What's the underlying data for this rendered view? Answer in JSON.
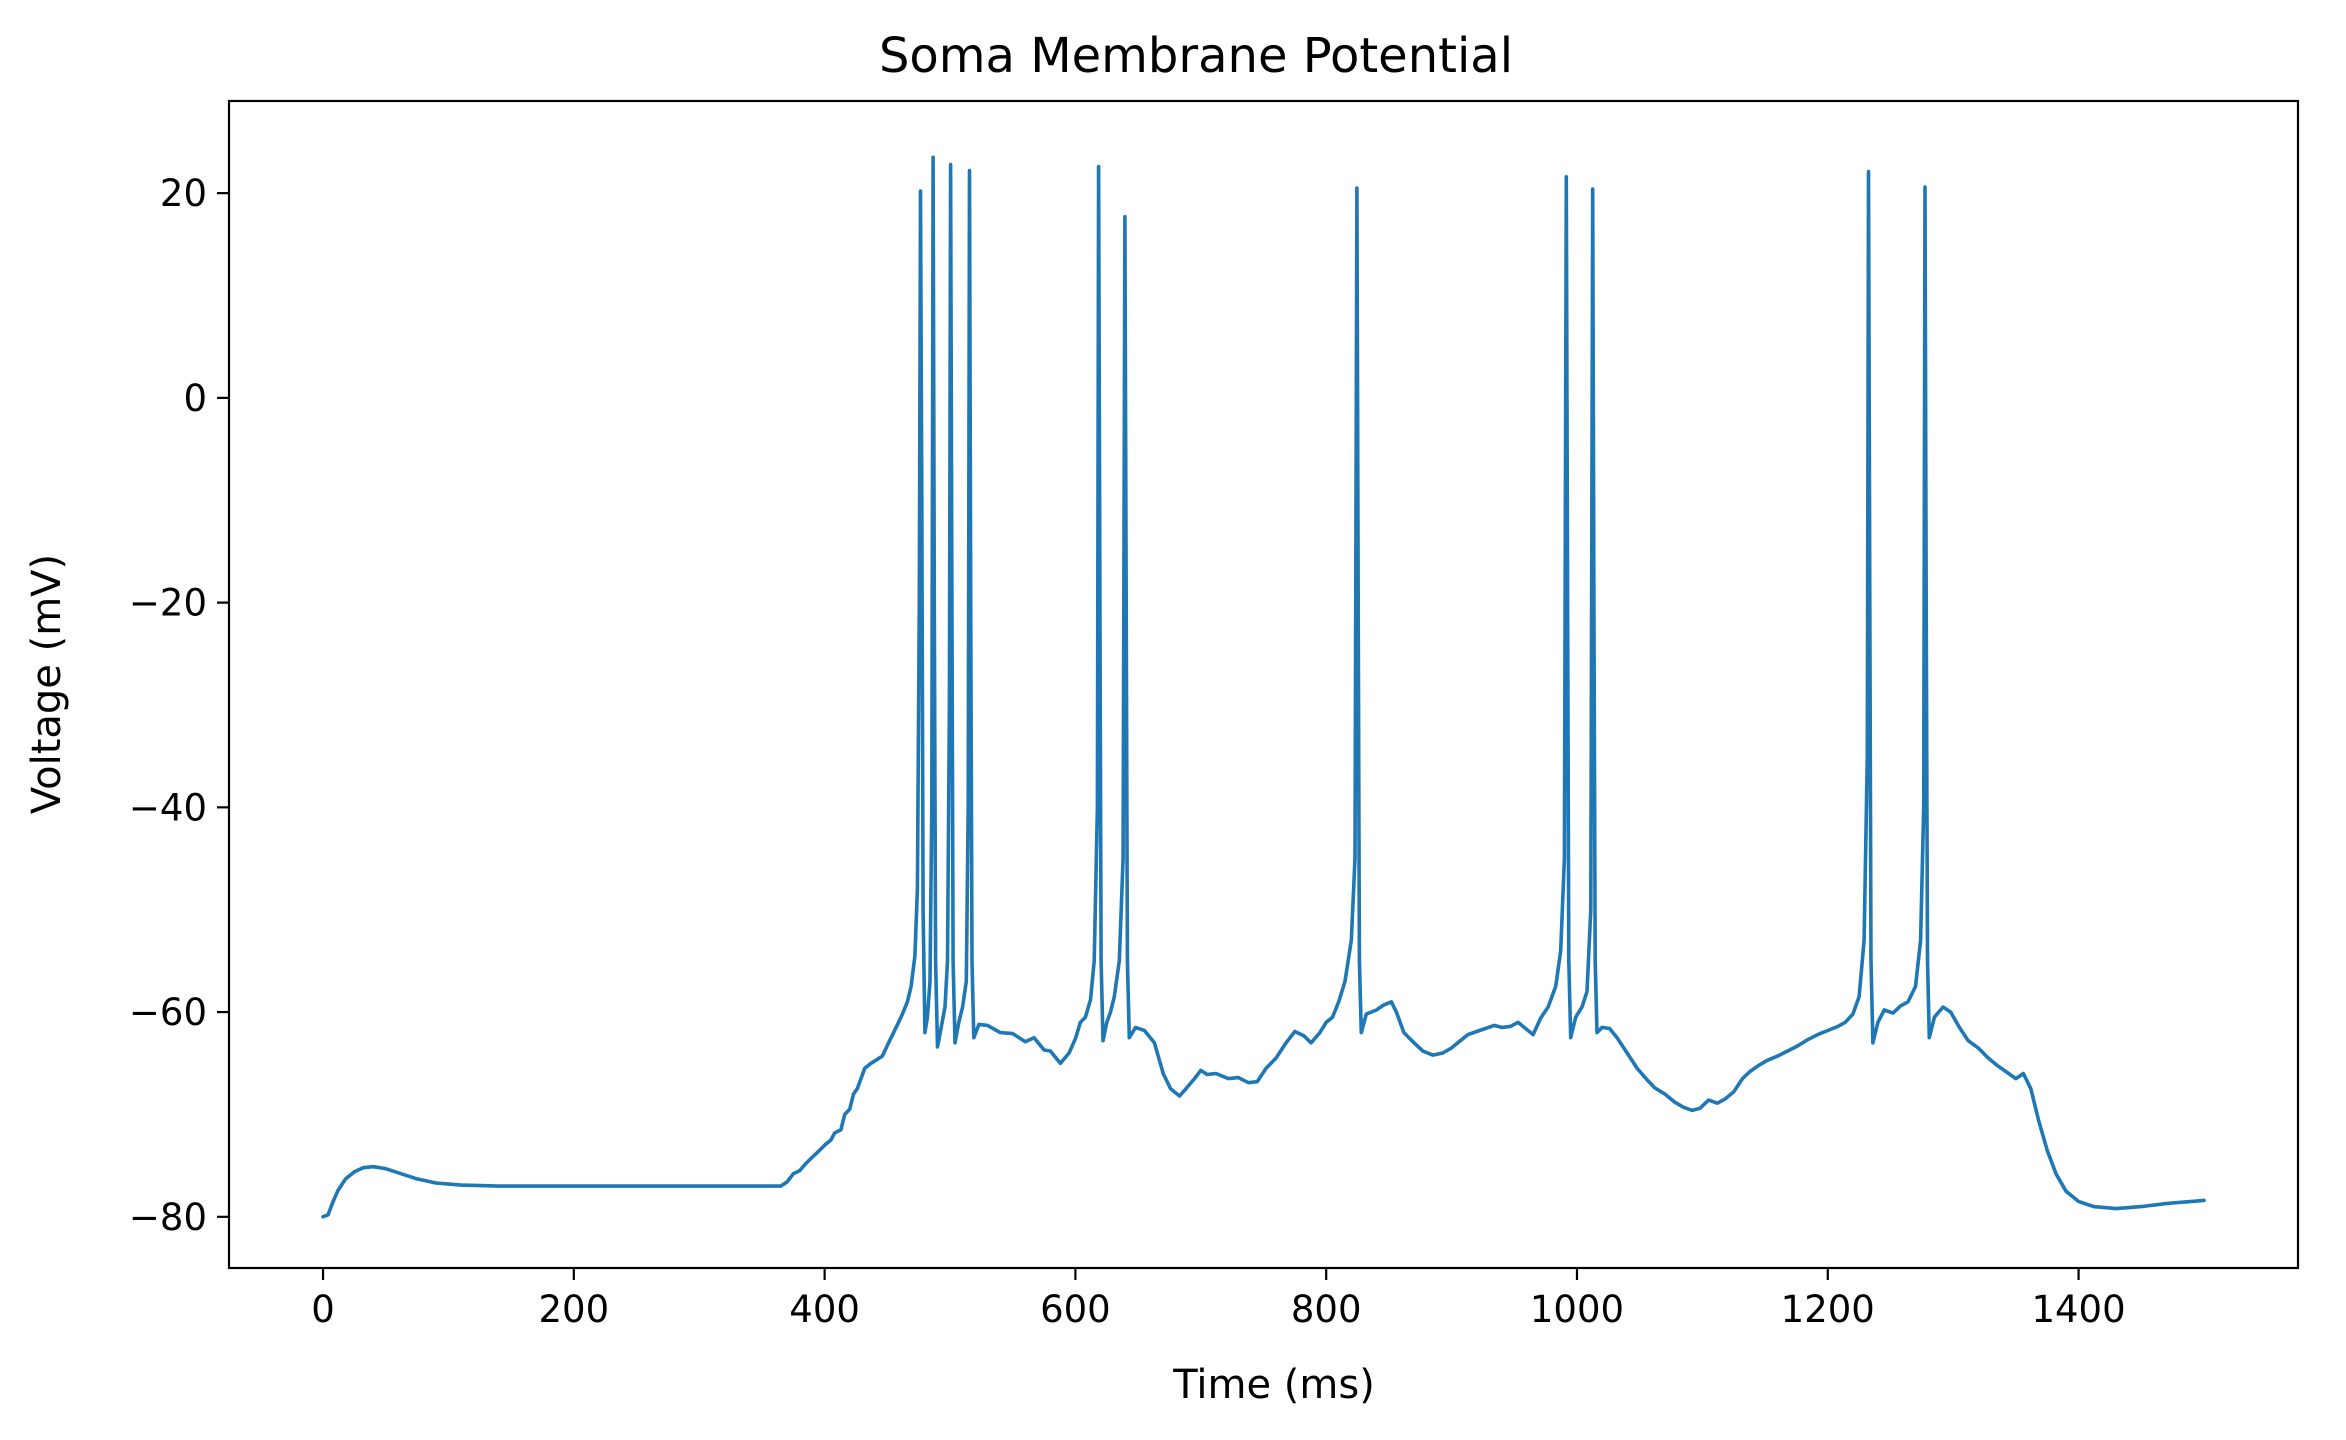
{
  "chart_data": {
    "type": "line",
    "title": "Soma Membrane Potential",
    "xlabel": "Time (ms)",
    "ylabel": "Voltage (mV)",
    "xlim": [
      -75,
      1575
    ],
    "ylim": [
      -85,
      29
    ],
    "xticks": [
      0,
      200,
      400,
      600,
      800,
      1000,
      1200,
      1400
    ],
    "yticks": [
      -80,
      -60,
      -40,
      -20,
      0,
      20
    ],
    "xtick_labels": [
      "0",
      "200",
      "400",
      "600",
      "800",
      "1000",
      "1200",
      "1400"
    ],
    "ytick_labels": [
      "−80",
      "−60",
      "−40",
      "−20",
      "0",
      "20"
    ],
    "grid": false,
    "line_color": "#1f77b4",
    "series": [
      {
        "points": [
          [
            0,
            -80
          ],
          [
            4,
            -79.8
          ],
          [
            8,
            -78.5
          ],
          [
            12,
            -77.4
          ],
          [
            18,
            -76.3
          ],
          [
            25,
            -75.6
          ],
          [
            32,
            -75.2
          ],
          [
            40,
            -75.1
          ],
          [
            50,
            -75.3
          ],
          [
            60,
            -75.7
          ],
          [
            75,
            -76.3
          ],
          [
            90,
            -76.7
          ],
          [
            110,
            -76.9
          ],
          [
            140,
            -77.0
          ],
          [
            200,
            -77.0
          ],
          [
            300,
            -77.0
          ],
          [
            365,
            -77.0
          ],
          [
            370,
            -76.6
          ],
          [
            375,
            -75.8
          ],
          [
            380,
            -75.5
          ],
          [
            385,
            -74.8
          ],
          [
            390,
            -74.2
          ],
          [
            396,
            -73.5
          ],
          [
            400,
            -73.0
          ],
          [
            405,
            -72.5
          ],
          [
            408,
            -71.8
          ],
          [
            413,
            -71.5
          ],
          [
            416,
            -70.0
          ],
          [
            420,
            -69.5
          ],
          [
            423,
            -68.0
          ],
          [
            426,
            -67.5
          ],
          [
            429,
            -66.5
          ],
          [
            432,
            -65.5
          ],
          [
            437,
            -65.0
          ],
          [
            441,
            -64.7
          ],
          [
            446,
            -64.3
          ],
          [
            451,
            -63.0
          ],
          [
            455,
            -62.0
          ],
          [
            459,
            -61.0
          ],
          [
            462,
            -60.2
          ],
          [
            466,
            -59.0
          ],
          [
            469,
            -57.5
          ],
          [
            472,
            -54.5
          ],
          [
            474,
            -48.0
          ],
          [
            475.5,
            -20.0
          ],
          [
            476.5,
            20.2
          ],
          [
            477.5,
            -10.0
          ],
          [
            478.5,
            -50.0
          ],
          [
            480,
            -62.0
          ],
          [
            482,
            -60.5
          ],
          [
            484,
            -57.0
          ],
          [
            485.5,
            -40.0
          ],
          [
            486.5,
            23.5
          ],
          [
            487.5,
            -20.0
          ],
          [
            488.5,
            -55.0
          ],
          [
            490,
            -63.4
          ],
          [
            493,
            -61.5
          ],
          [
            496,
            -59.5
          ],
          [
            498,
            -55.0
          ],
          [
            499.5,
            -30.0
          ],
          [
            500.5,
            22.8
          ],
          [
            501.5,
            -20.0
          ],
          [
            502.5,
            -55.0
          ],
          [
            504,
            -63.0
          ],
          [
            507,
            -61.0
          ],
          [
            510,
            -59.5
          ],
          [
            513,
            -57.0
          ],
          [
            514.5,
            -40.0
          ],
          [
            515.5,
            22.2
          ],
          [
            516.5,
            -20.0
          ],
          [
            517.5,
            -55.0
          ],
          [
            519,
            -62.5
          ],
          [
            523,
            -61.2
          ],
          [
            530,
            -61.3
          ],
          [
            540,
            -62.0
          ],
          [
            550,
            -62.1
          ],
          [
            560,
            -62.9
          ],
          [
            567,
            -62.5
          ],
          [
            575,
            -63.7
          ],
          [
            580,
            -63.8
          ],
          [
            588,
            -65.0
          ],
          [
            595,
            -64.0
          ],
          [
            600,
            -62.6
          ],
          [
            604,
            -61.0
          ],
          [
            608,
            -60.5
          ],
          [
            612,
            -58.8
          ],
          [
            615,
            -55.0
          ],
          [
            617.5,
            -40.0
          ],
          [
            618.5,
            22.6
          ],
          [
            619.5,
            -20.0
          ],
          [
            620.5,
            -55.0
          ],
          [
            622,
            -62.8
          ],
          [
            625,
            -61.0
          ],
          [
            628,
            -60.0
          ],
          [
            631,
            -58.5
          ],
          [
            635,
            -55.0
          ],
          [
            638,
            -45.0
          ],
          [
            639.5,
            17.7
          ],
          [
            640.5,
            -20.0
          ],
          [
            641.5,
            -55.0
          ],
          [
            643,
            -62.5
          ],
          [
            648,
            -61.5
          ],
          [
            655,
            -61.8
          ],
          [
            663,
            -63.0
          ],
          [
            670,
            -66.0
          ],
          [
            676,
            -67.5
          ],
          [
            683,
            -68.2
          ],
          [
            688,
            -67.5
          ],
          [
            695,
            -66.5
          ],
          [
            700,
            -65.7
          ],
          [
            705,
            -66.1
          ],
          [
            712,
            -66.0
          ],
          [
            722,
            -66.5
          ],
          [
            730,
            -66.4
          ],
          [
            738,
            -66.9
          ],
          [
            745,
            -66.8
          ],
          [
            752,
            -65.5
          ],
          [
            760,
            -64.5
          ],
          [
            768,
            -63.0
          ],
          [
            775,
            -61.9
          ],
          [
            782,
            -62.3
          ],
          [
            788,
            -63.0
          ],
          [
            795,
            -62.0
          ],
          [
            800,
            -61.0
          ],
          [
            805,
            -60.5
          ],
          [
            810,
            -59.0
          ],
          [
            815,
            -57.0
          ],
          [
            820,
            -53.0
          ],
          [
            823,
            -45.0
          ],
          [
            824.5,
            20.5
          ],
          [
            825.5,
            -20.0
          ],
          [
            826.5,
            -55.0
          ],
          [
            828,
            -62.0
          ],
          [
            832,
            -60.2
          ],
          [
            840,
            -59.8
          ],
          [
            846,
            -59.3
          ],
          [
            852,
            -59.0
          ],
          [
            856,
            -60.0
          ],
          [
            862,
            -62.0
          ],
          [
            870,
            -63.0
          ],
          [
            877,
            -63.8
          ],
          [
            885,
            -64.2
          ],
          [
            893,
            -64.0
          ],
          [
            900,
            -63.5
          ],
          [
            908,
            -62.7
          ],
          [
            913,
            -62.2
          ],
          [
            920,
            -61.9
          ],
          [
            927,
            -61.6
          ],
          [
            934,
            -61.3
          ],
          [
            940,
            -61.5
          ],
          [
            947,
            -61.4
          ],
          [
            953,
            -61.0
          ],
          [
            959,
            -61.6
          ],
          [
            965,
            -62.2
          ],
          [
            971,
            -60.6
          ],
          [
            977,
            -59.5
          ],
          [
            983,
            -57.5
          ],
          [
            987,
            -54.0
          ],
          [
            990,
            -45.0
          ],
          [
            991.5,
            21.6
          ],
          [
            992.5,
            -20.0
          ],
          [
            993.5,
            -55.0
          ],
          [
            995,
            -62.5
          ],
          [
            999,
            -60.5
          ],
          [
            1004,
            -59.5
          ],
          [
            1008,
            -58.0
          ],
          [
            1011,
            -50.0
          ],
          [
            1012.5,
            20.4
          ],
          [
            1013.5,
            -20.0
          ],
          [
            1014.5,
            -55.0
          ],
          [
            1016,
            -62.0
          ],
          [
            1020,
            -61.5
          ],
          [
            1026,
            -61.6
          ],
          [
            1032,
            -62.5
          ],
          [
            1040,
            -64.0
          ],
          [
            1048,
            -65.5
          ],
          [
            1055,
            -66.5
          ],
          [
            1062,
            -67.4
          ],
          [
            1070,
            -68.0
          ],
          [
            1078,
            -68.8
          ],
          [
            1085,
            -69.3
          ],
          [
            1092,
            -69.6
          ],
          [
            1098,
            -69.4
          ],
          [
            1105,
            -68.6
          ],
          [
            1112,
            -68.9
          ],
          [
            1118,
            -68.5
          ],
          [
            1125,
            -67.8
          ],
          [
            1132,
            -66.5
          ],
          [
            1138,
            -65.8
          ],
          [
            1145,
            -65.2
          ],
          [
            1152,
            -64.7
          ],
          [
            1160,
            -64.3
          ],
          [
            1168,
            -63.8
          ],
          [
            1176,
            -63.3
          ],
          [
            1184,
            -62.7
          ],
          [
            1192,
            -62.2
          ],
          [
            1200,
            -61.8
          ],
          [
            1208,
            -61.4
          ],
          [
            1214,
            -61.0
          ],
          [
            1220,
            -60.2
          ],
          [
            1225,
            -58.5
          ],
          [
            1229,
            -53.0
          ],
          [
            1231.5,
            -35.0
          ],
          [
            1232.5,
            22.1
          ],
          [
            1233.5,
            -20.0
          ],
          [
            1234.5,
            -55.0
          ],
          [
            1236,
            -63.0
          ],
          [
            1240,
            -61.0
          ],
          [
            1245,
            -59.8
          ],
          [
            1252,
            -60.1
          ],
          [
            1258,
            -59.4
          ],
          [
            1264,
            -59.0
          ],
          [
            1270,
            -57.5
          ],
          [
            1274,
            -53.0
          ],
          [
            1276.5,
            -40.0
          ],
          [
            1277.5,
            20.6
          ],
          [
            1278.5,
            -20.0
          ],
          [
            1279.5,
            -55.0
          ],
          [
            1281,
            -62.5
          ],
          [
            1285,
            -60.5
          ],
          [
            1292,
            -59.5
          ],
          [
            1298,
            -60.0
          ],
          [
            1305,
            -61.5
          ],
          [
            1312,
            -62.8
          ],
          [
            1320,
            -63.5
          ],
          [
            1328,
            -64.5
          ],
          [
            1335,
            -65.2
          ],
          [
            1342,
            -65.8
          ],
          [
            1350,
            -66.5
          ],
          [
            1356,
            -66.0
          ],
          [
            1362,
            -67.5
          ],
          [
            1368,
            -70.5
          ],
          [
            1375,
            -73.5
          ],
          [
            1382,
            -75.8
          ],
          [
            1390,
            -77.5
          ],
          [
            1400,
            -78.5
          ],
          [
            1412,
            -79.0
          ],
          [
            1430,
            -79.2
          ],
          [
            1450,
            -79.0
          ],
          [
            1470,
            -78.7
          ],
          [
            1500,
            -78.4
          ]
        ]
      }
    ]
  }
}
